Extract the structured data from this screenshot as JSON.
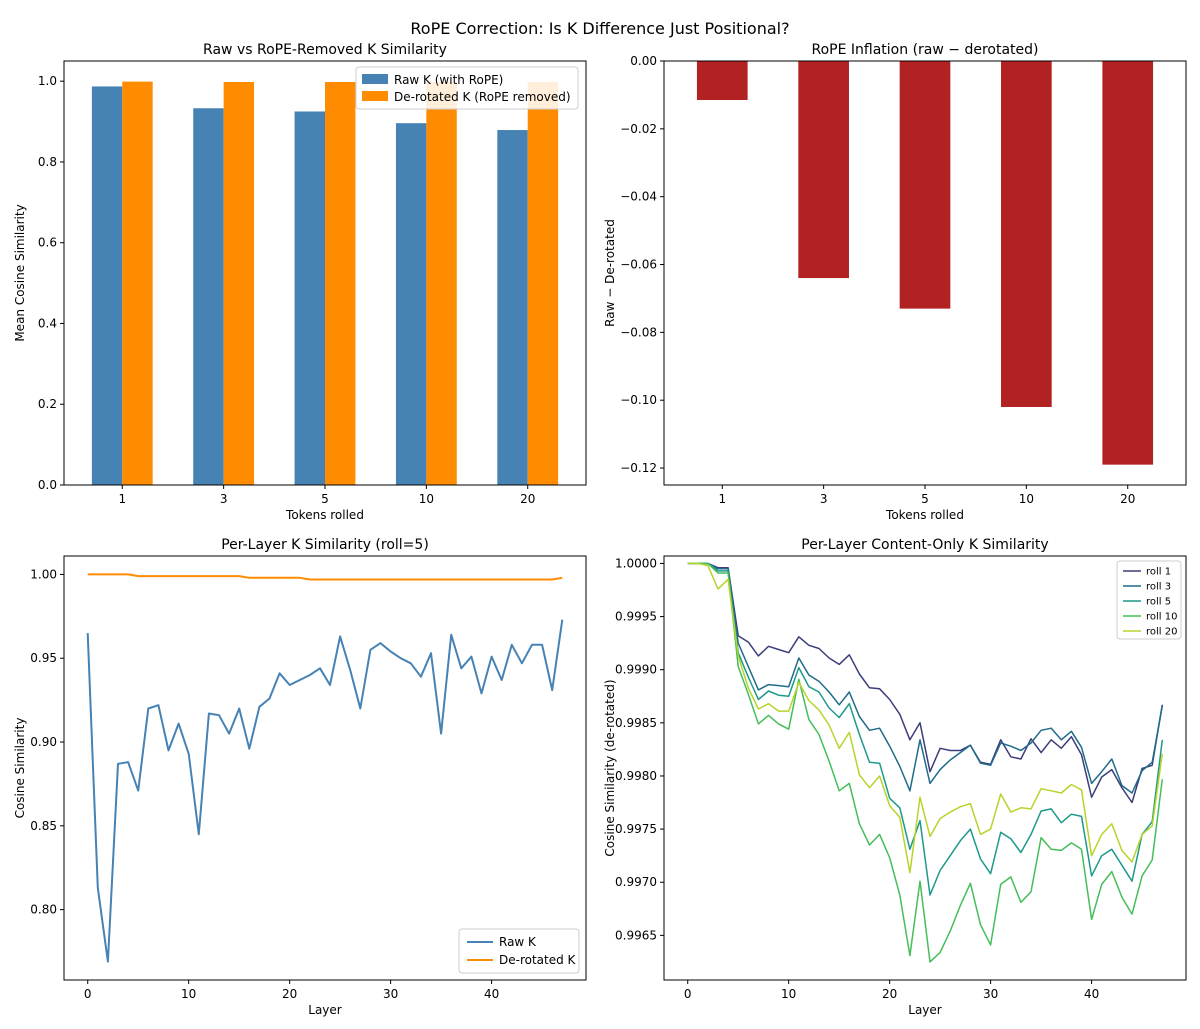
{
  "suptitle": "RoPE Correction: Is K Difference Just Positional?",
  "colors": {
    "raw": "#4682b4",
    "derot": "#ff8c00",
    "inflation": "#b22222",
    "roll1": "#3b3e7a",
    "roll3": "#1f6b8a",
    "roll5": "#1d998a",
    "roll10": "#45be5a",
    "roll20": "#b7d42a"
  },
  "chart_data": [
    {
      "type": "bar",
      "title": "Raw vs RoPE-Removed K Similarity",
      "xlabel": "Tokens rolled",
      "ylabel": "Mean Cosine Similarity",
      "categories": [
        "1",
        "3",
        "5",
        "10",
        "20"
      ],
      "ylim": [
        0,
        1.05
      ],
      "yticks": [
        0.0,
        0.2,
        0.4,
        0.6,
        0.8,
        1.0
      ],
      "ytick_labels": [
        "0.0",
        "0.2",
        "0.4",
        "0.6",
        "0.8",
        "1.0"
      ],
      "legend_position": "upper right",
      "series": [
        {
          "name": "Raw K (with RoPE)",
          "color_key": "raw",
          "values": [
            0.987,
            0.933,
            0.925,
            0.896,
            0.879
          ]
        },
        {
          "name": "De-rotated K (RoPE removed)",
          "color_key": "derot",
          "values": [
            0.999,
            0.998,
            0.998,
            0.998,
            0.998
          ]
        }
      ]
    },
    {
      "type": "bar",
      "title": "RoPE Inflation (raw − derotated)",
      "xlabel": "Tokens rolled",
      "ylabel": "Raw − De-rotated",
      "categories": [
        "1",
        "3",
        "5",
        "10",
        "20"
      ],
      "ylim": [
        -0.125,
        0.0
      ],
      "yticks": [
        0.0,
        -0.02,
        -0.04,
        -0.06,
        -0.08,
        -0.1,
        -0.12
      ],
      "ytick_labels": [
        "0.00",
        "−0.02",
        "−0.04",
        "−0.06",
        "−0.08",
        "−0.10",
        "−0.12"
      ],
      "series": [
        {
          "name": "Raw − De-rotated",
          "color_key": "inflation",
          "values": [
            -0.0115,
            -0.064,
            -0.073,
            -0.102,
            -0.119
          ]
        }
      ]
    },
    {
      "type": "line",
      "title": "Per-Layer K Similarity (roll=5)",
      "xlabel": "Layer",
      "ylabel": "Cosine Similarity",
      "xlim": [
        -2.35,
        49.35
      ],
      "ylim": [
        0.758,
        1.011
      ],
      "xticks": [
        0,
        10,
        20,
        30,
        40
      ],
      "yticks": [
        0.8,
        0.85,
        0.9,
        0.95,
        1.0
      ],
      "ytick_labels": [
        "0.80",
        "0.85",
        "0.90",
        "0.95",
        "1.00"
      ],
      "legend_position": "lower right",
      "series": [
        {
          "name": "Raw K",
          "color_key": "raw",
          "values": [
            0.965,
            0.813,
            0.769,
            0.887,
            0.888,
            0.871,
            0.92,
            0.922,
            0.895,
            0.911,
            0.893,
            0.845,
            0.917,
            0.916,
            0.905,
            0.92,
            0.896,
            0.921,
            0.926,
            0.941,
            0.934,
            0.937,
            0.94,
            0.944,
            0.934,
            0.963,
            0.943,
            0.92,
            0.955,
            0.959,
            0.954,
            0.95,
            0.947,
            0.939,
            0.953,
            0.905,
            0.964,
            0.944,
            0.951,
            0.929,
            0.951,
            0.937,
            0.958,
            0.947,
            0.958,
            0.958,
            0.931,
            0.973
          ]
        },
        {
          "name": "De-rotated K",
          "color_key": "derot",
          "values": [
            1.0,
            1.0,
            1.0,
            1.0,
            1.0,
            0.999,
            0.999,
            0.999,
            0.999,
            0.999,
            0.999,
            0.999,
            0.999,
            0.999,
            0.999,
            0.999,
            0.998,
            0.998,
            0.998,
            0.998,
            0.998,
            0.998,
            0.997,
            0.997,
            0.997,
            0.997,
            0.997,
            0.997,
            0.997,
            0.997,
            0.997,
            0.997,
            0.997,
            0.997,
            0.997,
            0.997,
            0.997,
            0.997,
            0.997,
            0.997,
            0.997,
            0.997,
            0.997,
            0.997,
            0.997,
            0.997,
            0.997,
            0.998
          ]
        }
      ]
    },
    {
      "type": "line",
      "title": "Per-Layer Content-Only K Similarity",
      "xlabel": "Layer",
      "ylabel": "Cosine Similarity (de-rotated)",
      "xlim": [
        -2.35,
        49.35
      ],
      "ylim": [
        0.99608,
        1.00007
      ],
      "xticks": [
        0,
        10,
        20,
        30,
        40
      ],
      "yticks": [
        0.9965,
        0.997,
        0.9975,
        0.998,
        0.9985,
        0.999,
        0.9995,
        1.0
      ],
      "ytick_labels": [
        "0.9965",
        "0.9970",
        "0.9975",
        "0.9980",
        "0.9985",
        "0.9990",
        "0.9995",
        "1.0000"
      ],
      "legend_position": "upper right",
      "series": [
        {
          "name": "roll 1",
          "color_key": "roll1",
          "values": [
            1.0,
            1.0,
            1.0,
            0.99996,
            0.99996,
            0.99932,
            0.99926,
            0.99913,
            0.99922,
            0.99919,
            0.99916,
            0.99931,
            0.99923,
            0.9992,
            0.99911,
            0.99905,
            0.99914,
            0.99896,
            0.99883,
            0.99882,
            0.99872,
            0.99858,
            0.99834,
            0.9985,
            0.99804,
            0.99826,
            0.99824,
            0.99824,
            0.99829,
            0.99813,
            0.99811,
            0.99834,
            0.99818,
            0.99816,
            0.99835,
            0.99822,
            0.99834,
            0.99826,
            0.99837,
            0.9982,
            0.9978,
            0.99799,
            0.99806,
            0.99789,
            0.99775,
            0.99807,
            0.9981,
            0.99867
          ]
        },
        {
          "name": "roll 3",
          "color_key": "roll3",
          "values": [
            1.0,
            1.0,
            1.0,
            0.99995,
            0.99995,
            0.99925,
            0.99903,
            0.99881,
            0.99886,
            0.99885,
            0.99884,
            0.99911,
            0.99895,
            0.99889,
            0.99879,
            0.99867,
            0.99879,
            0.99856,
            0.99843,
            0.99845,
            0.99828,
            0.99809,
            0.99786,
            0.99834,
            0.99793,
            0.99806,
            0.99815,
            0.99822,
            0.99829,
            0.99812,
            0.9981,
            0.99831,
            0.99828,
            0.99824,
            0.99831,
            0.99843,
            0.99845,
            0.99834,
            0.99842,
            0.99827,
            0.99793,
            0.99804,
            0.99816,
            0.99791,
            0.99784,
            0.99805,
            0.99813,
            0.99866
          ]
        },
        {
          "name": "roll 5",
          "color_key": "roll5",
          "values": [
            1.0,
            1.0,
            1.0,
            0.99993,
            0.99993,
            0.99916,
            0.99893,
            0.99872,
            0.9988,
            0.99876,
            0.99875,
            0.99902,
            0.99884,
            0.99879,
            0.99864,
            0.99855,
            0.99868,
            0.99839,
            0.99813,
            0.99812,
            0.99779,
            0.9977,
            0.99731,
            0.99758,
            0.99688,
            0.99711,
            0.99725,
            0.99739,
            0.9975,
            0.99722,
            0.99708,
            0.99747,
            0.99741,
            0.99728,
            0.99745,
            0.99767,
            0.99769,
            0.99756,
            0.99764,
            0.99762,
            0.99706,
            0.99725,
            0.99731,
            0.99716,
            0.99701,
            0.99745,
            0.99757,
            0.99834
          ]
        },
        {
          "name": "roll 10",
          "color_key": "roll10",
          "values": [
            1.0,
            1.0,
            1.0,
            0.99991,
            0.99991,
            0.99903,
            0.99877,
            0.99849,
            0.99857,
            0.99849,
            0.99844,
            0.99891,
            0.99853,
            0.99839,
            0.99814,
            0.99786,
            0.99793,
            0.99755,
            0.99735,
            0.99745,
            0.99723,
            0.99688,
            0.99631,
            0.99701,
            0.99625,
            0.99634,
            0.99654,
            0.99678,
            0.99699,
            0.9966,
            0.99641,
            0.99698,
            0.99705,
            0.99681,
            0.99691,
            0.99742,
            0.99731,
            0.9973,
            0.99737,
            0.99731,
            0.99665,
            0.99698,
            0.9971,
            0.99686,
            0.9967,
            0.99706,
            0.99721,
            0.99797
          ]
        },
        {
          "name": "roll 20",
          "color_key": "roll20",
          "values": [
            1.0,
            1.0,
            0.99998,
            0.99976,
            0.99985,
            0.99913,
            0.99883,
            0.99863,
            0.99868,
            0.99861,
            0.99861,
            0.99888,
            0.99871,
            0.99862,
            0.99848,
            0.99826,
            0.99841,
            0.99801,
            0.99789,
            0.998,
            0.99772,
            0.99761,
            0.99709,
            0.9978,
            0.99743,
            0.9976,
            0.99766,
            0.99771,
            0.99774,
            0.99745,
            0.9975,
            0.99783,
            0.99766,
            0.9977,
            0.99769,
            0.99788,
            0.99786,
            0.99784,
            0.99792,
            0.99787,
            0.99725,
            0.99745,
            0.99755,
            0.9973,
            0.99719,
            0.99745,
            0.99753,
            0.99821
          ]
        }
      ]
    }
  ]
}
